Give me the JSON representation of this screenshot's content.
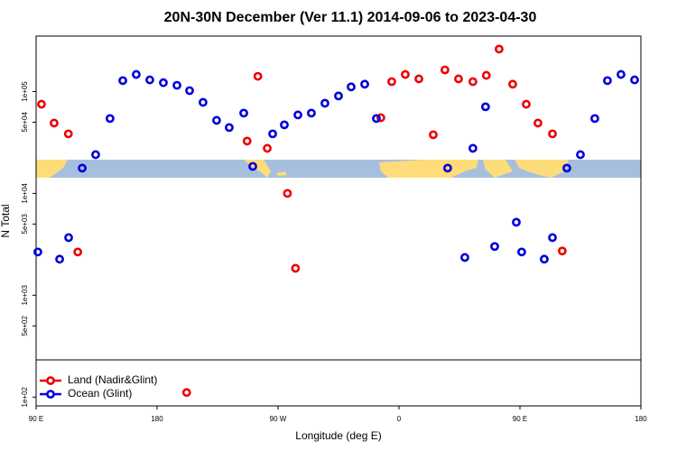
{
  "chart_data": {
    "type": "scatter",
    "title": "20N-30N December (Ver 11.1)   2014-09-06 to 2023-04-30",
    "x_label": "Longitude (deg E)",
    "y_label": "N Total",
    "xlim": [
      90,
      540
    ],
    "xticks": [
      {
        "value": 90,
        "label": "90 E"
      },
      {
        "value": 180,
        "label": "180"
      },
      {
        "value": 270,
        "label": "90 W"
      },
      {
        "value": 360,
        "label": "0"
      },
      {
        "value": 450,
        "label": "90 E"
      },
      {
        "value": 540,
        "label": "180"
      }
    ],
    "ylim": [
      82,
      350000
    ],
    "log_y": true,
    "yticks": [
      {
        "value": 100000,
        "label": "1e+05"
      },
      {
        "value": 50000,
        "label": "5e+04"
      },
      {
        "value": 10000,
        "label": "1e+04"
      },
      {
        "value": 5000,
        "label": "5e+03"
      },
      {
        "value": 1000,
        "label": "1e+03"
      },
      {
        "value": 500,
        "label": "5e+02"
      },
      {
        "value": 100,
        "label": "1e+02"
      }
    ],
    "legend": "bottomleft",
    "series": [
      {
        "name": "Land (Nadir&Glint)",
        "color": "#ee0000",
        "x": [
          94,
          103.4,
          114,
          121,
          202,
          247,
          255,
          262,
          277,
          283,
          346.5,
          354.6,
          364.7,
          374.8,
          385.5,
          394.2,
          404.3,
          415,
          425,
          434.5,
          444.6,
          454.7,
          463.4,
          474.2,
          481.5
        ],
        "values": [
          75000,
          49000,
          38400,
          2660,
          111,
          32600,
          141000,
          27700,
          10000,
          1840,
          55300,
          125000,
          147000,
          133000,
          37600,
          163000,
          133000,
          125000,
          144000,
          261000,
          118000,
          75000,
          49000,
          38400,
          2720
        ]
      },
      {
        "name": "Ocean (Glint)",
        "color": "#0000dd",
        "x": [
          91.3,
          107.5,
          114.2,
          124.3,
          134.3,
          145,
          154.5,
          164.5,
          174.6,
          184.7,
          194.8,
          204.2,
          214.2,
          224.3,
          233.7,
          244.5,
          251.2,
          266,
          274.7,
          284.8,
          294.8,
          304.9,
          315,
          324.4,
          334.5,
          343.2,
          396.2,
          409,
          415,
          424.4,
          431.2,
          447.3,
          451.3,
          468.1,
          474.2,
          484.9,
          495,
          505.7,
          515.1,
          525.2,
          535.3
        ],
        "values": [
          2660,
          2260,
          3680,
          17700,
          24000,
          54300,
          128000,
          147000,
          130000,
          122000,
          115000,
          102000,
          78300,
          52100,
          44300,
          61400,
          18400,
          38400,
          47100,
          58900,
          61400,
          76700,
          90400,
          111000,
          118000,
          54300,
          17700,
          2350,
          27700,
          70800,
          3010,
          5210,
          2660,
          2260,
          3680,
          17700,
          24000,
          54300,
          128000,
          147000,
          130000
        ]
      }
    ]
  }
}
